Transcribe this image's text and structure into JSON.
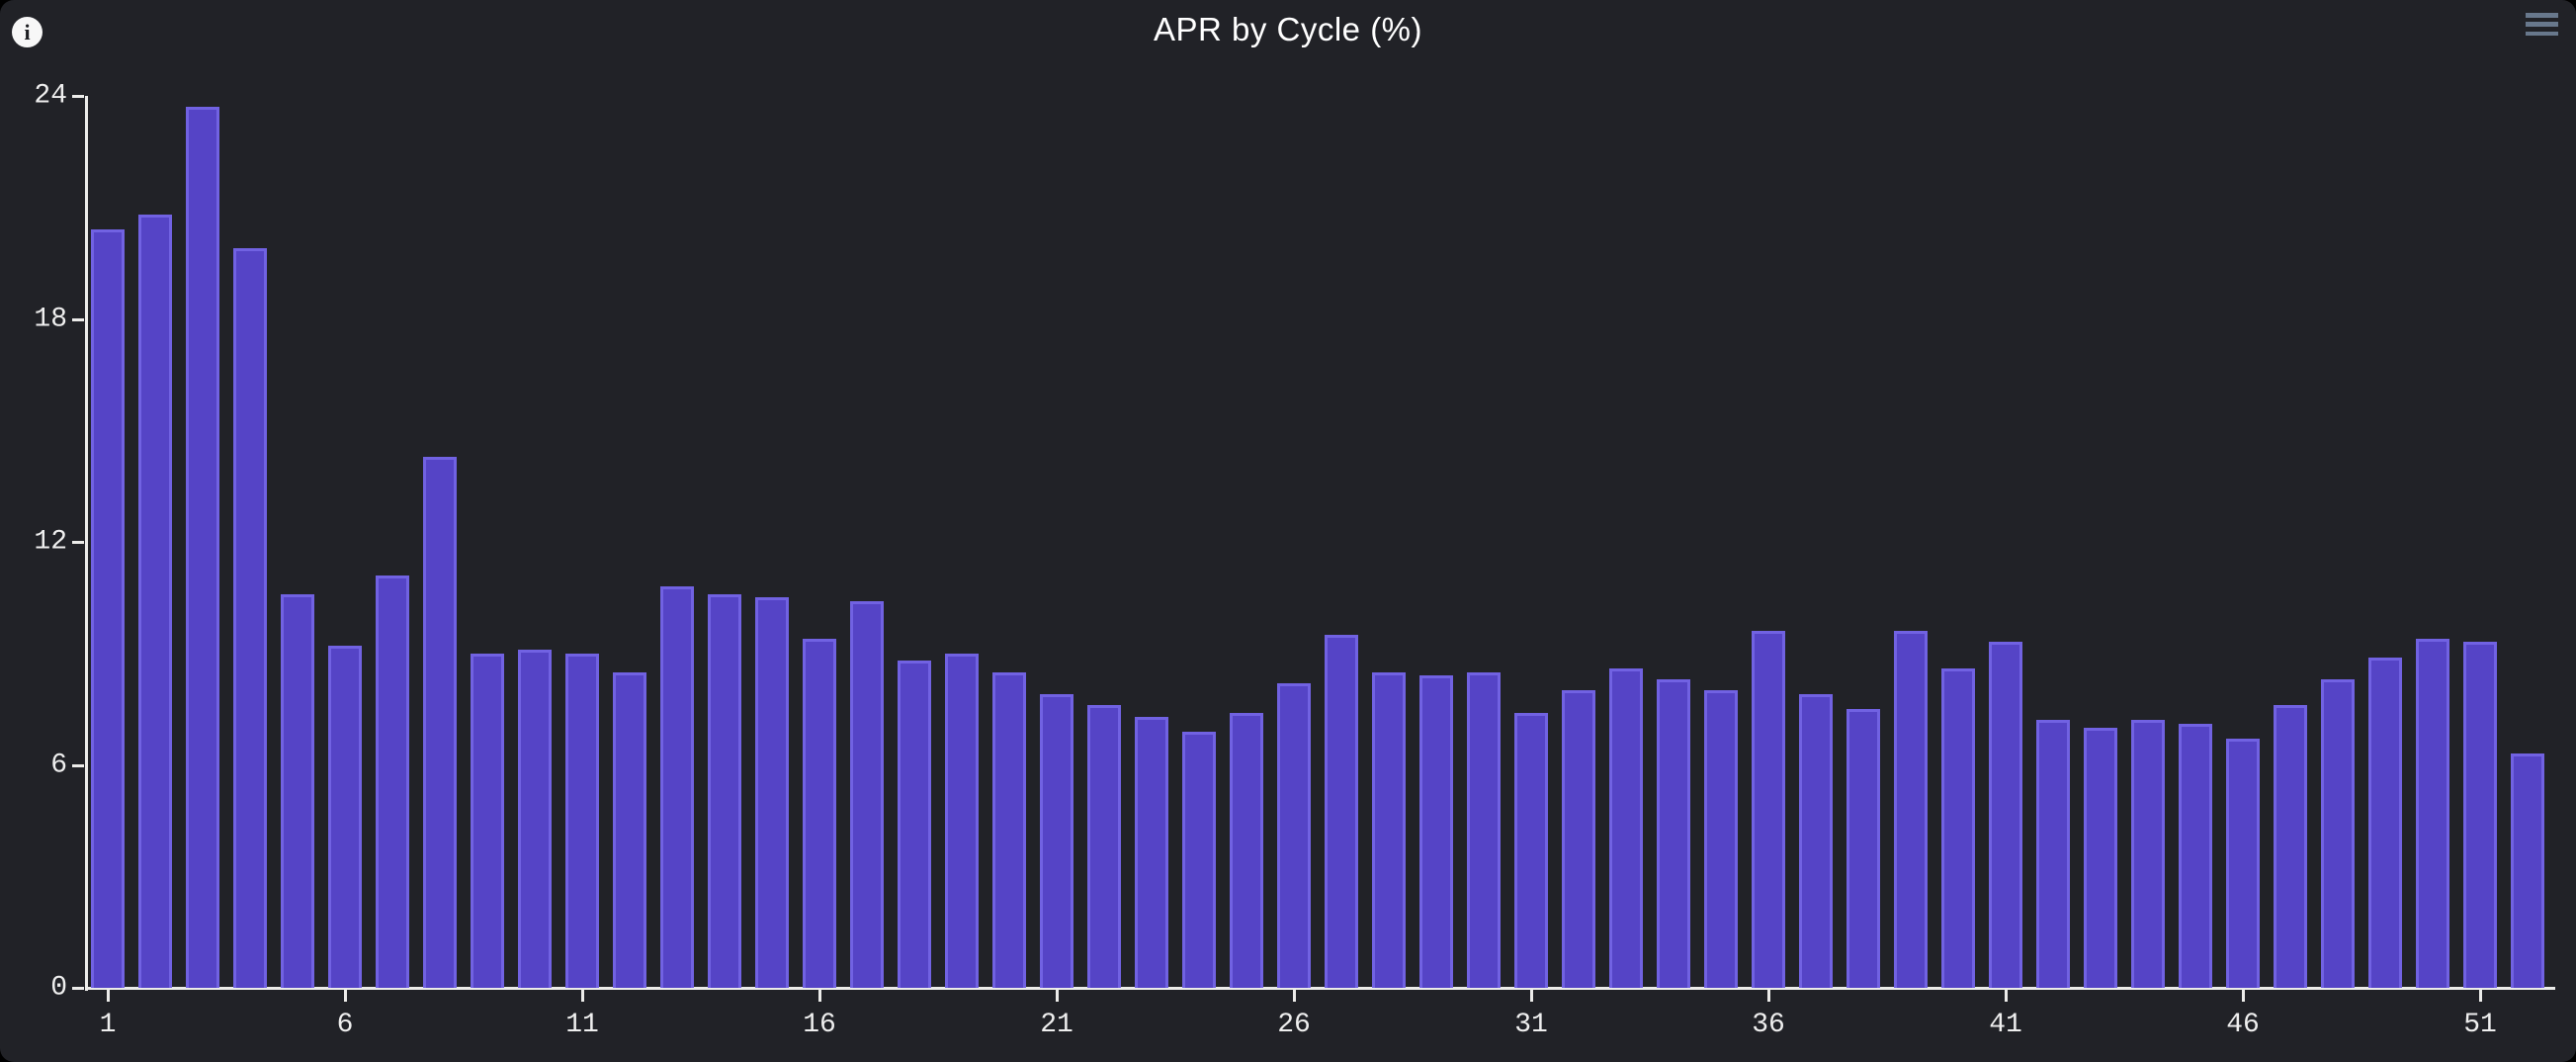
{
  "header": {
    "title": "APR by Cycle (%)",
    "info_glyph": "i",
    "menu_icon": "hamburger-icon"
  },
  "colors": {
    "card_background": "#212227",
    "bar_fill": "#5544c6",
    "bar_border": "#7162e2",
    "axis": "#ececea",
    "tick_text": "#efefef",
    "title_text": "#ffffff",
    "menu_icon": "#68788c",
    "info_circle": "#f7f7f7"
  },
  "chart_data": {
    "type": "bar",
    "title": "APR by Cycle (%)",
    "xlabel": "",
    "ylabel": "",
    "x": [
      1,
      2,
      3,
      4,
      5,
      6,
      7,
      8,
      9,
      10,
      11,
      12,
      13,
      14,
      15,
      16,
      17,
      18,
      19,
      20,
      21,
      22,
      23,
      24,
      25,
      26,
      27,
      28,
      29,
      30,
      31,
      32,
      33,
      34,
      35,
      36,
      37,
      38,
      39,
      40,
      41,
      42,
      43,
      44,
      45,
      46,
      47,
      48,
      49,
      50,
      51,
      52
    ],
    "values": [
      20.4,
      20.8,
      23.7,
      19.9,
      10.6,
      9.2,
      11.1,
      14.3,
      9.0,
      9.1,
      9.0,
      8.5,
      10.8,
      10.6,
      10.5,
      9.4,
      10.4,
      8.8,
      9.0,
      8.5,
      7.9,
      7.6,
      7.3,
      6.9,
      7.4,
      8.2,
      9.5,
      8.5,
      8.4,
      8.5,
      7.4,
      8.0,
      8.6,
      8.3,
      8.0,
      9.6,
      7.9,
      7.5,
      9.6,
      8.6,
      9.3,
      7.2,
      7.0,
      7.2,
      7.1,
      6.7,
      7.6,
      8.3,
      8.9,
      9.4,
      9.3,
      6.3
    ],
    "y_ticks": [
      0,
      6,
      12,
      18,
      24
    ],
    "x_ticks": [
      1,
      6,
      11,
      16,
      21,
      26,
      31,
      36,
      41,
      46,
      51
    ],
    "ylim": [
      0,
      24
    ],
    "grid": false,
    "legend": "none"
  }
}
